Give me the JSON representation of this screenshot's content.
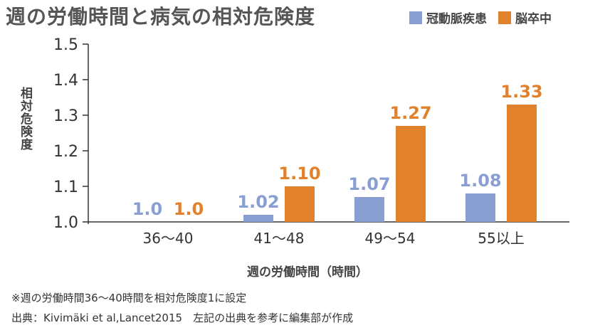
{
  "title": "週の労働時間と病気の相対危険度",
  "legend": [
    {
      "label": "冠動脈疾患",
      "color": "#8a9fd1"
    },
    {
      "label": "脳卒中",
      "color": "#e1812c"
    }
  ],
  "notes": {
    "line1": "※週の労働時間36〜40時間を相対危険度1に設定",
    "line2": "出典：Kivimäki et al,Lancet2015　左記の出典を参考に編集部が作成"
  },
  "chart_data": {
    "type": "bar",
    "title": "週の労働時間と病気の相対危険度",
    "xlabel": "週の労働時間（時間）",
    "ylabel": "相対危険度",
    "ylim": [
      1.0,
      1.5
    ],
    "yticks": [
      "1.0",
      "1.1",
      "1.2",
      "1.3",
      "1.4",
      "1.5"
    ],
    "categories": [
      "36〜40",
      "41〜48",
      "49〜54",
      "55以上"
    ],
    "series": [
      {
        "name": "冠動脈疾患",
        "color": "#8a9fd1",
        "values": [
          1.0,
          1.02,
          1.07,
          1.08
        ],
        "labels": [
          "1.0",
          "1.02",
          "1.07",
          "1.08"
        ]
      },
      {
        "name": "脳卒中",
        "color": "#e1812c",
        "values": [
          1.0,
          1.1,
          1.27,
          1.33
        ],
        "labels": [
          "1.0",
          "1.10",
          "1.27",
          "1.33"
        ]
      }
    ],
    "grid": false,
    "legend_position": "top-right"
  }
}
